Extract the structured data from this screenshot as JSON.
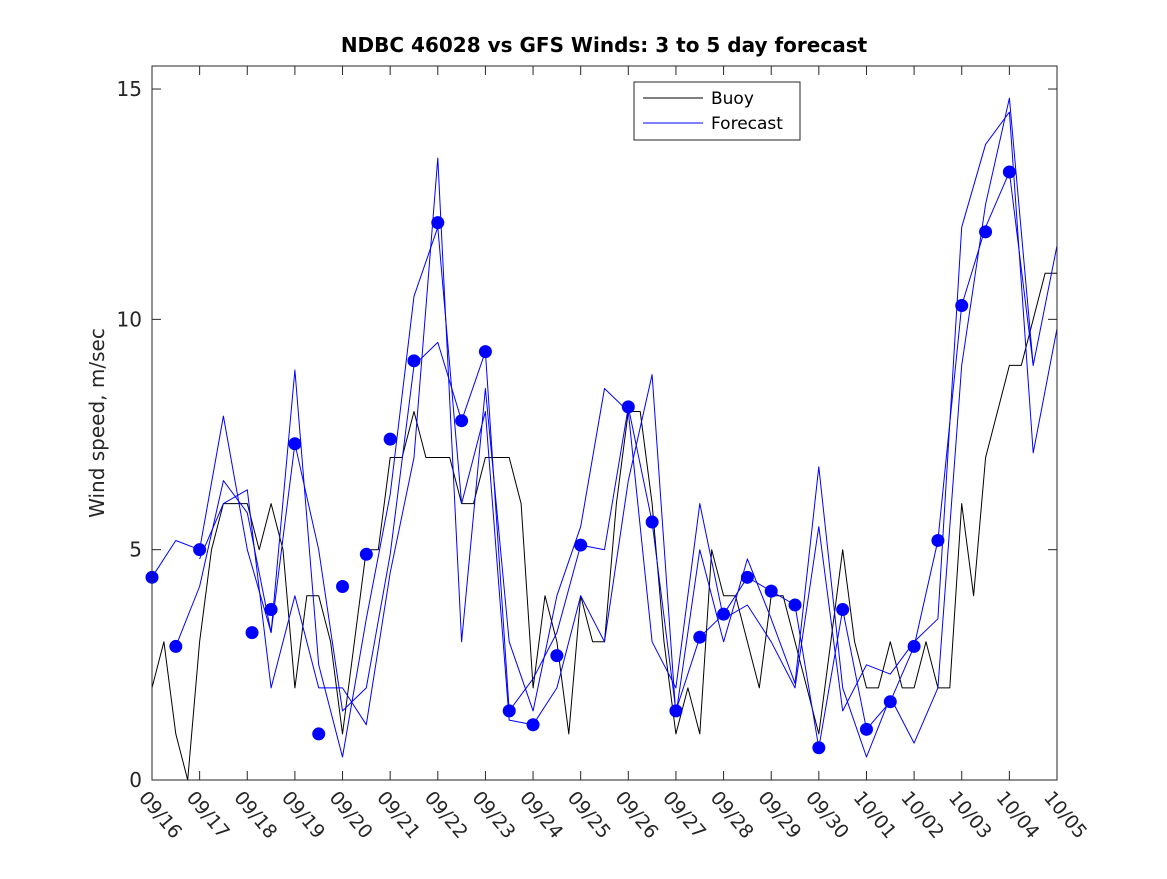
{
  "chart_data": {
    "type": "line",
    "title": "NDBC 46028 vs GFS Winds: 3 to 5 day forecast",
    "ylabel": "Wind speed, m/sec",
    "xlabel": "",
    "ylim": [
      0,
      15.5
    ],
    "xlim": [
      0,
      19
    ],
    "y_ticks": [
      0,
      5,
      10,
      15
    ],
    "x_ticks": [
      {
        "x": 0,
        "label": "09/16"
      },
      {
        "x": 1,
        "label": "09/17"
      },
      {
        "x": 2,
        "label": "09/18"
      },
      {
        "x": 3,
        "label": "09/19"
      },
      {
        "x": 4,
        "label": "09/20"
      },
      {
        "x": 5,
        "label": "09/21"
      },
      {
        "x": 6,
        "label": "09/22"
      },
      {
        "x": 7,
        "label": "09/23"
      },
      {
        "x": 8,
        "label": "09/24"
      },
      {
        "x": 9,
        "label": "09/25"
      },
      {
        "x": 10,
        "label": "09/26"
      },
      {
        "x": 11,
        "label": "09/27"
      },
      {
        "x": 12,
        "label": "09/28"
      },
      {
        "x": 13,
        "label": "09/29"
      },
      {
        "x": 14,
        "label": "09/30"
      },
      {
        "x": 15,
        "label": "10/01"
      },
      {
        "x": 16,
        "label": "10/02"
      },
      {
        "x": 17,
        "label": "10/03"
      },
      {
        "x": 18,
        "label": "10/04"
      },
      {
        "x": 19,
        "label": "10/05"
      }
    ],
    "legend": {
      "placement": "top-center",
      "entries": [
        {
          "label": "Buoy",
          "color": "#000000"
        },
        {
          "label": "Forecast",
          "color": "#0000ff"
        }
      ]
    },
    "series": [
      {
        "name": "Buoy",
        "color": "#000000",
        "x": [
          0,
          0.25,
          0.5,
          0.75,
          1,
          1.25,
          1.5,
          1.75,
          2,
          2.25,
          2.5,
          2.75,
          3,
          3.25,
          3.5,
          3.75,
          4,
          4.25,
          4.5,
          4.75,
          5,
          5.25,
          5.5,
          5.75,
          6,
          6.25,
          6.5,
          6.75,
          7,
          7.25,
          7.5,
          7.75,
          8,
          8.25,
          8.5,
          8.75,
          9,
          9.25,
          9.5,
          9.75,
          10,
          10.25,
          10.5,
          10.75,
          11,
          11.25,
          11.5,
          11.75,
          12,
          12.25,
          12.5,
          12.75,
          13,
          13.25,
          13.5,
          13.75,
          14,
          14.25,
          14.5,
          14.75,
          15,
          15.25,
          15.5,
          15.75,
          16,
          16.25,
          16.5,
          16.75,
          17,
          17.25,
          17.5,
          17.75,
          18,
          18.25,
          18.5,
          18.75,
          19
        ],
        "values": [
          2,
          3,
          1,
          0,
          3,
          5,
          6,
          6,
          6,
          5,
          6,
          5,
          2,
          4,
          4,
          3,
          1,
          3,
          5,
          5,
          7,
          7,
          8,
          7,
          7,
          7,
          6,
          6,
          7,
          7,
          7,
          6,
          2,
          4,
          3,
          1,
          4,
          3,
          3,
          6,
          8,
          8,
          6,
          3,
          1,
          2,
          1,
          5,
          4,
          4,
          3,
          2,
          4,
          4,
          3,
          2,
          1,
          3,
          5,
          3,
          2,
          2,
          3,
          2,
          2,
          3,
          2,
          2,
          6,
          4,
          7,
          8,
          9,
          9,
          10,
          11,
          11
        ]
      },
      {
        "name": "Forecast run 1",
        "color": "#0000ff",
        "x": [
          0,
          0.5,
          1,
          1.5,
          2,
          2.5,
          3,
          3.5,
          4,
          4.5,
          5,
          5.5,
          6,
          6.5,
          7,
          7.5,
          8,
          8.5,
          9,
          9.5,
          10,
          10.5,
          11,
          11.5,
          12,
          12.5,
          13,
          13.5,
          14,
          14.5,
          15,
          15.5,
          16,
          16.5,
          17,
          17.5,
          18,
          18.5
        ],
        "values": [
          4.4,
          5.2,
          5.0,
          7.9,
          5.0,
          3.2,
          7.3,
          5.0,
          1.5,
          2.0,
          4.9,
          9.0,
          9.5,
          7.8,
          9.3,
          1.5,
          2.2,
          3.2,
          5.1,
          5.0,
          8.1,
          5.6,
          1.5,
          3.1,
          3.6,
          4.4,
          4.1,
          3.8,
          0.7,
          3.7,
          1.1,
          1.7,
          2.9,
          5.2,
          10.3,
          12.0,
          13.2,
          9.0
        ]
      },
      {
        "name": "Forecast run 2",
        "color": "#0000ff",
        "x": [
          0.5,
          1,
          1.5,
          2,
          2.5,
          3,
          3.5,
          4,
          4.5,
          5,
          5.5,
          6,
          6.5,
          7,
          7.5,
          8,
          8.5,
          9,
          9.5,
          10,
          10.5,
          11,
          11.5,
          12,
          12.5,
          13,
          13.5,
          14,
          14.5,
          15,
          15.5,
          16,
          16.5,
          17,
          17.5,
          18,
          18.5,
          19
        ],
        "values": [
          2.9,
          4.2,
          6.5,
          5.8,
          3.2,
          8.9,
          2.5,
          0.5,
          3.5,
          6.2,
          10.5,
          12.0,
          6.0,
          8.0,
          1.3,
          1.2,
          2.0,
          4.0,
          3.0,
          6.5,
          8.8,
          1.4,
          5.0,
          3.0,
          4.8,
          3.5,
          2.1,
          6.8,
          2.0,
          0.5,
          1.8,
          0.8,
          2.0,
          9.0,
          12.5,
          14.8,
          9.0,
          11.6
        ]
      },
      {
        "name": "Forecast run 3",
        "color": "#0000ff",
        "x": [
          1,
          1.5,
          2,
          2.5,
          3,
          3.5,
          4,
          4.5,
          5,
          5.5,
          6,
          6.5,
          7,
          7.5,
          8,
          8.5,
          9,
          9.5,
          10,
          10.5,
          11,
          11.5,
          12,
          12.5,
          13,
          13.5,
          14,
          14.5,
          15,
          15.5,
          16,
          16.5,
          17,
          17.5,
          18,
          18.5,
          19
        ],
        "values": [
          4.8,
          6.0,
          6.3,
          2.0,
          4.0,
          2.0,
          2.0,
          1.2,
          4.5,
          7.0,
          13.5,
          3.0,
          8.5,
          3.0,
          1.5,
          4.0,
          5.5,
          8.5,
          8.0,
          3.0,
          2.0,
          6.0,
          3.5,
          3.8,
          3.0,
          2.0,
          5.5,
          1.5,
          2.5,
          2.3,
          3.0,
          3.5,
          12.0,
          13.8,
          14.5,
          7.1,
          9.8
        ]
      }
    ],
    "markers": {
      "name": "Forecast markers",
      "color": "#0000ff",
      "x": [
        0,
        0.5,
        1,
        2.1,
        2.5,
        3,
        3.5,
        4,
        4.5,
        5,
        5.5,
        6,
        6.5,
        7,
        7.5,
        8,
        8.5,
        9,
        10,
        10.5,
        11,
        11.5,
        12,
        12.5,
        13,
        13.5,
        14,
        14.5,
        15,
        15.5,
        16,
        16.5,
        17,
        17.5,
        18
      ],
      "values": [
        4.4,
        2.9,
        5.0,
        3.2,
        3.7,
        7.3,
        1.0,
        4.2,
        4.9,
        7.4,
        9.1,
        12.1,
        7.8,
        9.3,
        1.5,
        1.2,
        2.7,
        5.1,
        8.1,
        5.6,
        1.5,
        3.1,
        3.6,
        4.4,
        4.1,
        3.8,
        0.7,
        3.7,
        1.1,
        1.7,
        2.9,
        5.2,
        10.3,
        11.9,
        13.2
      ]
    }
  }
}
